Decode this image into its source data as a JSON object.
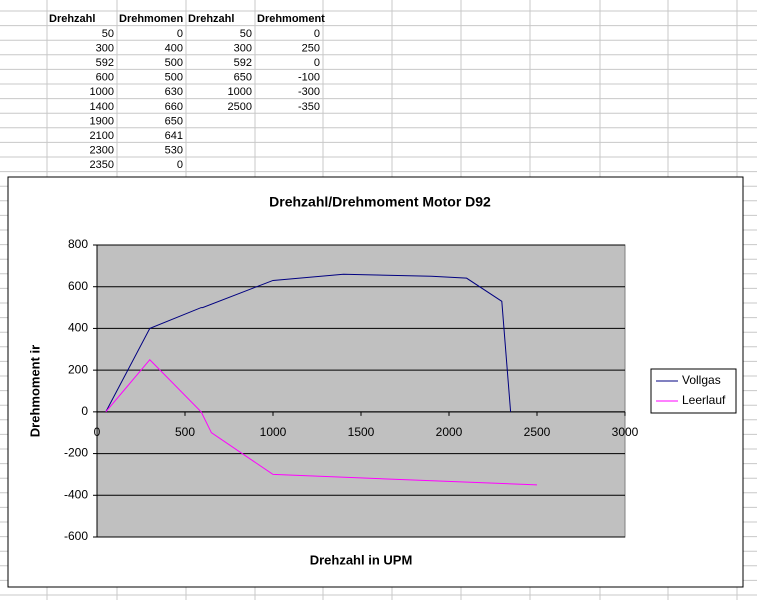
{
  "table": {
    "header": [
      "Drehzahl",
      "Drehmomen",
      "Drehzahl",
      "Drehmoment"
    ],
    "rows": [
      [
        50,
        0,
        50,
        0
      ],
      [
        300,
        400,
        300,
        250
      ],
      [
        592,
        500,
        592,
        0
      ],
      [
        600,
        500,
        650,
        -100
      ],
      [
        1000,
        630,
        1000,
        -300
      ],
      [
        1400,
        660,
        2500,
        -350
      ],
      [
        1900,
        650
      ],
      [
        2100,
        641
      ],
      [
        2300,
        530
      ],
      [
        2350,
        0
      ]
    ]
  },
  "chart_data": {
    "type": "line",
    "title": "Drehzahl/Drehmoment Motor D92",
    "x_label": "Drehzahl in UPM",
    "y_label": "Drehmoment ir",
    "xlim": [
      0,
      3000
    ],
    "xticks": [
      0,
      500,
      1000,
      1500,
      2000,
      2500,
      3000
    ],
    "ylim": [
      -600,
      800
    ],
    "yticks": [
      -600,
      -400,
      -200,
      0,
      200,
      400,
      600,
      800
    ],
    "grid": true,
    "legend": "right",
    "series": [
      {
        "name": "Vollgas",
        "color": "#000080",
        "x": [
          50,
          300,
          592,
          600,
          1000,
          1400,
          1900,
          2100,
          2300,
          2350
        ],
        "values": [
          0,
          400,
          500,
          500,
          630,
          660,
          650,
          641,
          530,
          0
        ]
      },
      {
        "name": "Leerlauf",
        "color": "#ff00ff",
        "x": [
          50,
          300,
          592,
          650,
          1000,
          2500
        ],
        "values": [
          0,
          250,
          0,
          -100,
          -300,
          -350
        ]
      }
    ]
  }
}
